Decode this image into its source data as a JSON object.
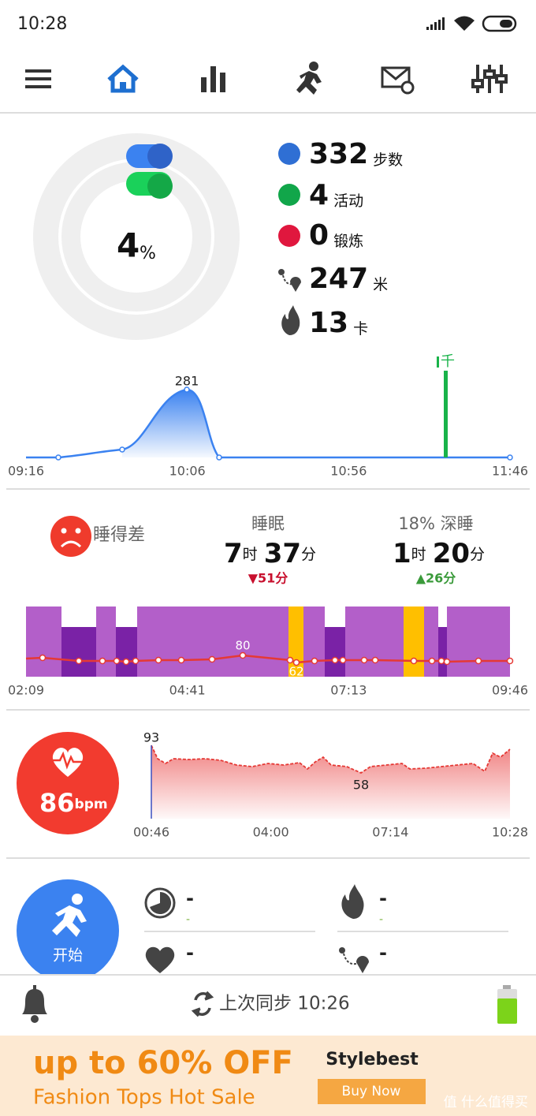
{
  "status_bar": {
    "time": "10:28"
  },
  "summary": {
    "percent": "4",
    "percent_unit": "%",
    "stats": [
      {
        "value": "332",
        "unit": "步数"
      },
      {
        "value": "4",
        "unit": "活动"
      },
      {
        "value": "0",
        "unit": "锻炼"
      },
      {
        "value": "247",
        "unit": "米"
      },
      {
        "value": "13",
        "unit": "卡"
      }
    ]
  },
  "steps_chart": {
    "peak_label": "281",
    "marker": "千",
    "x_labels": [
      "09:16",
      "10:06",
      "10:56",
      "11:46"
    ]
  },
  "sleep": {
    "quality": "睡得差",
    "total": {
      "title": "睡眠",
      "hours": "7",
      "hours_unit": "时",
      "minutes": "37",
      "minutes_unit": "分",
      "diff": "▼51分"
    },
    "deep": {
      "title": "18% 深睡",
      "hours": "1",
      "hours_unit": "时",
      "minutes": "20",
      "minutes_unit": "分",
      "diff": "▲26分"
    },
    "hr_max": "80",
    "hr_min": "62",
    "x_labels": [
      "02:09",
      "04:41",
      "07:13",
      "09:46"
    ]
  },
  "heart": {
    "bpm": "86",
    "unit": "bpm",
    "max": "93",
    "min": "58",
    "x_labels": [
      "00:46",
      "04:00",
      "07:14",
      "10:28"
    ]
  },
  "workout": {
    "start": "开始",
    "duration": "-",
    "duration_sub": "-",
    "calories": "-",
    "calories_sub": "-",
    "heart_rate": "-",
    "distance": "-"
  },
  "footer": {
    "sync": "上次同步 10:26"
  },
  "ad": {
    "headline": "up to 60% OFF",
    "subline": "Fashion Tops Hot Sale",
    "brand": "Stylebest",
    "button": "Buy Now",
    "watermark": "值 什么值得买"
  }
}
